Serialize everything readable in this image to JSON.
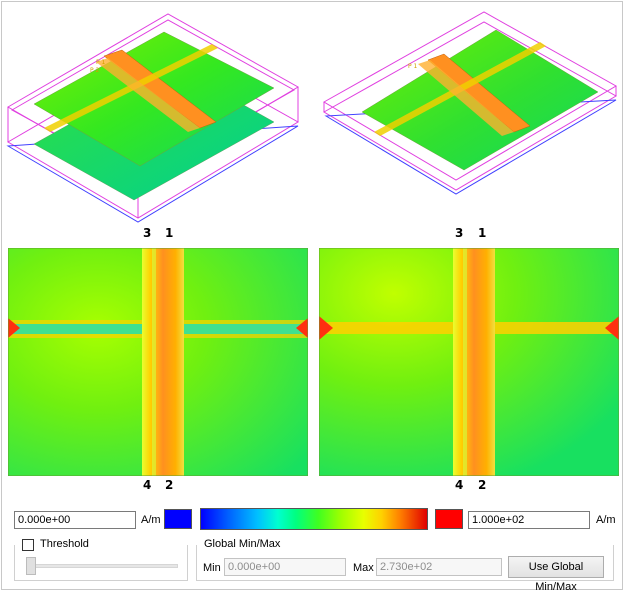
{
  "views": {
    "top_right_labels": [
      "3",
      "1"
    ],
    "bottom_labels_left": [
      "4",
      "2"
    ],
    "bottom_labels_right": [
      "4",
      "2"
    ],
    "top_left_labels": [
      "3",
      "1"
    ]
  },
  "colormap": {
    "min_value": "0.000e+00",
    "max_value": "1.000e+02",
    "unit_left": "A/m",
    "unit_right": "A/m",
    "min_color": "#0000ff",
    "max_color": "#ff0000"
  },
  "threshold": {
    "label": "Threshold",
    "checked": false
  },
  "global_minmax": {
    "title": "Global Min/Max",
    "min_label": "Min",
    "min_value": "0.000e+00",
    "max_label": "Max",
    "max_value": "2.730e+02",
    "button_label": "Use Global Min/Max"
  }
}
